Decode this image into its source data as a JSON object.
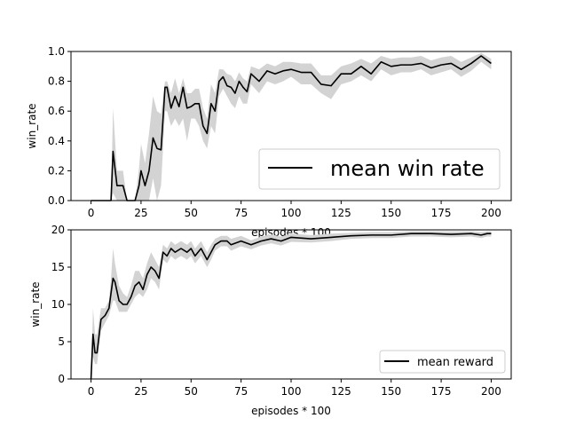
{
  "chart_data": [
    {
      "type": "line",
      "title": "",
      "xlabel": "episodes * 100",
      "ylabel": "win_rate",
      "xlim": [
        -10,
        210
      ],
      "ylim": [
        0.0,
        1.0
      ],
      "xticks": [
        0,
        25,
        50,
        75,
        100,
        125,
        150,
        175,
        200
      ],
      "xtick_labels": [
        "0",
        "25",
        "50",
        "75",
        "100",
        "125",
        "150",
        "175",
        "200"
      ],
      "yticks": [
        0.0,
        0.2,
        0.4,
        0.6,
        0.8,
        1.0
      ],
      "ytick_labels": [
        "0.0",
        "0.2",
        "0.4",
        "0.6",
        "0.8",
        "1.0"
      ],
      "legend": {
        "placement": "lower-right",
        "entries": [
          "mean win rate"
        ]
      },
      "grid": false,
      "line_color": "#000000",
      "band_color": "#d3d3d3",
      "x": [
        0,
        10,
        11,
        13,
        16,
        18,
        20,
        22,
        24,
        25,
        27,
        29,
        31,
        33,
        35,
        37,
        38,
        40,
        42,
        44,
        46,
        48,
        50,
        52,
        54,
        56,
        58,
        60,
        62,
        64,
        66,
        68,
        70,
        72,
        74,
        76,
        78,
        80,
        84,
        88,
        92,
        96,
        100,
        105,
        110,
        115,
        120,
        125,
        130,
        135,
        140,
        145,
        150,
        155,
        160,
        165,
        170,
        175,
        180,
        185,
        190,
        195,
        200
      ],
      "series": [
        {
          "name": "mean win rate",
          "values": [
            0.0,
            0.0,
            0.33,
            0.1,
            0.1,
            0.0,
            0.0,
            0.0,
            0.1,
            0.2,
            0.1,
            0.2,
            0.42,
            0.35,
            0.34,
            0.76,
            0.76,
            0.62,
            0.7,
            0.63,
            0.76,
            0.62,
            0.63,
            0.65,
            0.65,
            0.5,
            0.45,
            0.65,
            0.6,
            0.8,
            0.83,
            0.77,
            0.76,
            0.72,
            0.8,
            0.76,
            0.73,
            0.85,
            0.8,
            0.87,
            0.85,
            0.87,
            0.88,
            0.86,
            0.86,
            0.78,
            0.77,
            0.85,
            0.85,
            0.9,
            0.85,
            0.93,
            0.9,
            0.91,
            0.91,
            0.92,
            0.89,
            0.91,
            0.92,
            0.88,
            0.92,
            0.97,
            0.92
          ]
        }
      ],
      "band": {
        "lower": [
          0.0,
          0.0,
          0.05,
          0.0,
          0.0,
          0.0,
          0.0,
          0.0,
          0.0,
          0.0,
          0.0,
          0.0,
          0.15,
          0.0,
          0.1,
          0.6,
          0.6,
          0.5,
          0.55,
          0.5,
          0.55,
          0.4,
          0.55,
          0.55,
          0.5,
          0.4,
          0.35,
          0.5,
          0.45,
          0.7,
          0.75,
          0.7,
          0.65,
          0.62,
          0.7,
          0.65,
          0.65,
          0.78,
          0.72,
          0.8,
          0.78,
          0.8,
          0.83,
          0.78,
          0.78,
          0.72,
          0.68,
          0.78,
          0.8,
          0.84,
          0.8,
          0.88,
          0.84,
          0.86,
          0.86,
          0.88,
          0.84,
          0.86,
          0.88,
          0.83,
          0.87,
          0.93,
          0.88
        ],
        "upper": [
          0.0,
          0.0,
          0.62,
          0.2,
          0.2,
          0.0,
          0.0,
          0.0,
          0.22,
          0.38,
          0.25,
          0.45,
          0.7,
          0.6,
          0.58,
          0.8,
          0.8,
          0.72,
          0.82,
          0.72,
          0.82,
          0.72,
          0.72,
          0.75,
          0.75,
          0.62,
          0.55,
          0.78,
          0.72,
          0.88,
          0.88,
          0.85,
          0.84,
          0.8,
          0.86,
          0.82,
          0.8,
          0.9,
          0.88,
          0.92,
          0.9,
          0.93,
          0.93,
          0.92,
          0.92,
          0.84,
          0.84,
          0.9,
          0.92,
          0.95,
          0.92,
          0.97,
          0.95,
          0.96,
          0.96,
          0.97,
          0.94,
          0.96,
          0.97,
          0.93,
          0.96,
          0.99,
          0.95
        ]
      }
    },
    {
      "type": "line",
      "title": "",
      "xlabel": "episodes * 100",
      "ylabel": "win_rate",
      "xlim": [
        -10,
        210
      ],
      "ylim": [
        0,
        20
      ],
      "xticks": [
        0,
        25,
        50,
        75,
        100,
        125,
        150,
        175,
        200
      ],
      "xtick_labels": [
        "0",
        "25",
        "50",
        "75",
        "100",
        "125",
        "150",
        "175",
        "200"
      ],
      "yticks": [
        0,
        5,
        10,
        15,
        20
      ],
      "ytick_labels": [
        "0",
        "5",
        "10",
        "15",
        "20"
      ],
      "legend": {
        "placement": "lower-right",
        "entries": [
          "mean reward"
        ]
      },
      "grid": false,
      "line_color": "#000000",
      "band_color": "#d3d3d3",
      "x": [
        0,
        1,
        2,
        3,
        5,
        7,
        9,
        10,
        11,
        12,
        14,
        16,
        18,
        20,
        22,
        24,
        26,
        28,
        30,
        32,
        34,
        36,
        38,
        40,
        42,
        45,
        48,
        50,
        52,
        55,
        58,
        60,
        62,
        65,
        68,
        70,
        75,
        80,
        85,
        90,
        95,
        100,
        110,
        120,
        130,
        140,
        150,
        160,
        170,
        180,
        190,
        195,
        198,
        200
      ],
      "series": [
        {
          "name": "mean reward",
          "values": [
            0.0,
            6.0,
            3.5,
            3.5,
            8.0,
            8.5,
            9.5,
            11.5,
            13.5,
            13.0,
            10.5,
            10.0,
            10.0,
            11.0,
            12.5,
            13.0,
            12.0,
            14.0,
            15.0,
            14.5,
            13.5,
            17.0,
            16.5,
            17.5,
            17.0,
            17.5,
            17.0,
            17.5,
            16.5,
            17.5,
            16.0,
            17.0,
            18.0,
            18.5,
            18.5,
            18.0,
            18.5,
            18.0,
            18.5,
            18.8,
            18.5,
            19.0,
            18.8,
            19.0,
            19.2,
            19.3,
            19.3,
            19.5,
            19.5,
            19.4,
            19.5,
            19.3,
            19.5,
            19.5
          ]
        }
      ],
      "band": {
        "lower": [
          0.0,
          3.0,
          2.0,
          2.0,
          6.5,
          7.5,
          8.5,
          9.5,
          10.5,
          10.5,
          9.0,
          9.0,
          9.0,
          10.0,
          11.0,
          11.5,
          11.0,
          12.0,
          13.5,
          13.0,
          12.0,
          16.0,
          15.5,
          16.5,
          16.0,
          16.5,
          16.0,
          16.5,
          15.5,
          16.5,
          15.0,
          16.0,
          17.2,
          17.8,
          17.8,
          17.2,
          17.8,
          17.4,
          17.9,
          18.2,
          17.9,
          18.4,
          18.3,
          18.5,
          18.8,
          18.9,
          18.9,
          19.1,
          19.1,
          19.0,
          19.1,
          18.9,
          19.1,
          19.1
        ],
        "upper": [
          0.0,
          9.5,
          6.0,
          6.0,
          9.5,
          9.5,
          10.5,
          13.5,
          17.5,
          15.5,
          12.5,
          11.5,
          11.0,
          12.5,
          14.5,
          14.5,
          13.5,
          15.5,
          17.0,
          16.0,
          15.0,
          18.0,
          17.5,
          18.5,
          18.0,
          18.5,
          18.0,
          18.5,
          17.5,
          18.5,
          17.0,
          18.0,
          18.8,
          19.2,
          19.2,
          18.8,
          19.2,
          18.6,
          19.1,
          19.4,
          19.1,
          19.5,
          19.3,
          19.5,
          19.6,
          19.7,
          19.7,
          19.8,
          19.8,
          19.8,
          19.8,
          19.7,
          19.8,
          19.8
        ]
      }
    }
  ]
}
